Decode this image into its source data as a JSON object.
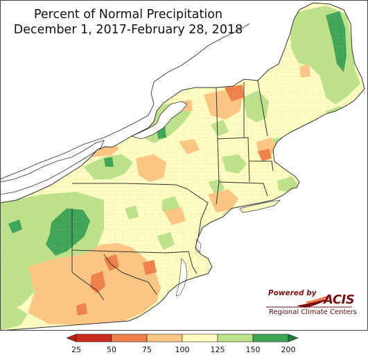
{
  "title": {
    "line1": "Percent of Normal Precipitation",
    "line2": "December 1, 2017-February 28, 2018"
  },
  "logo": {
    "powered_by": "Powered by",
    "name": "ACIS",
    "subtitle": "Regional Climate Centers"
  },
  "legend": {
    "ticks": [
      "25",
      "50",
      "75",
      "100",
      "125",
      "150",
      "200"
    ],
    "bins": [
      {
        "from": 25,
        "to": 50,
        "color": "#cc2a1e"
      },
      {
        "from": 50,
        "to": 75,
        "color": "#f0804a"
      },
      {
        "from": 75,
        "to": 100,
        "color": "#fdc682"
      },
      {
        "from": 100,
        "to": 125,
        "color": "#fefdc2"
      },
      {
        "from": 125,
        "to": 150,
        "color": "#bde38a"
      },
      {
        "from": 150,
        "to": 200,
        "color": "#3ea456"
      }
    ],
    "low_arrow_color": "#b81d12",
    "high_arrow_color": "#1e7a3a"
  },
  "colors": {
    "land_base": "#fefdc2",
    "water": "#ffffff",
    "state_border": "#333333",
    "county_border": "#b0ab8a"
  }
}
